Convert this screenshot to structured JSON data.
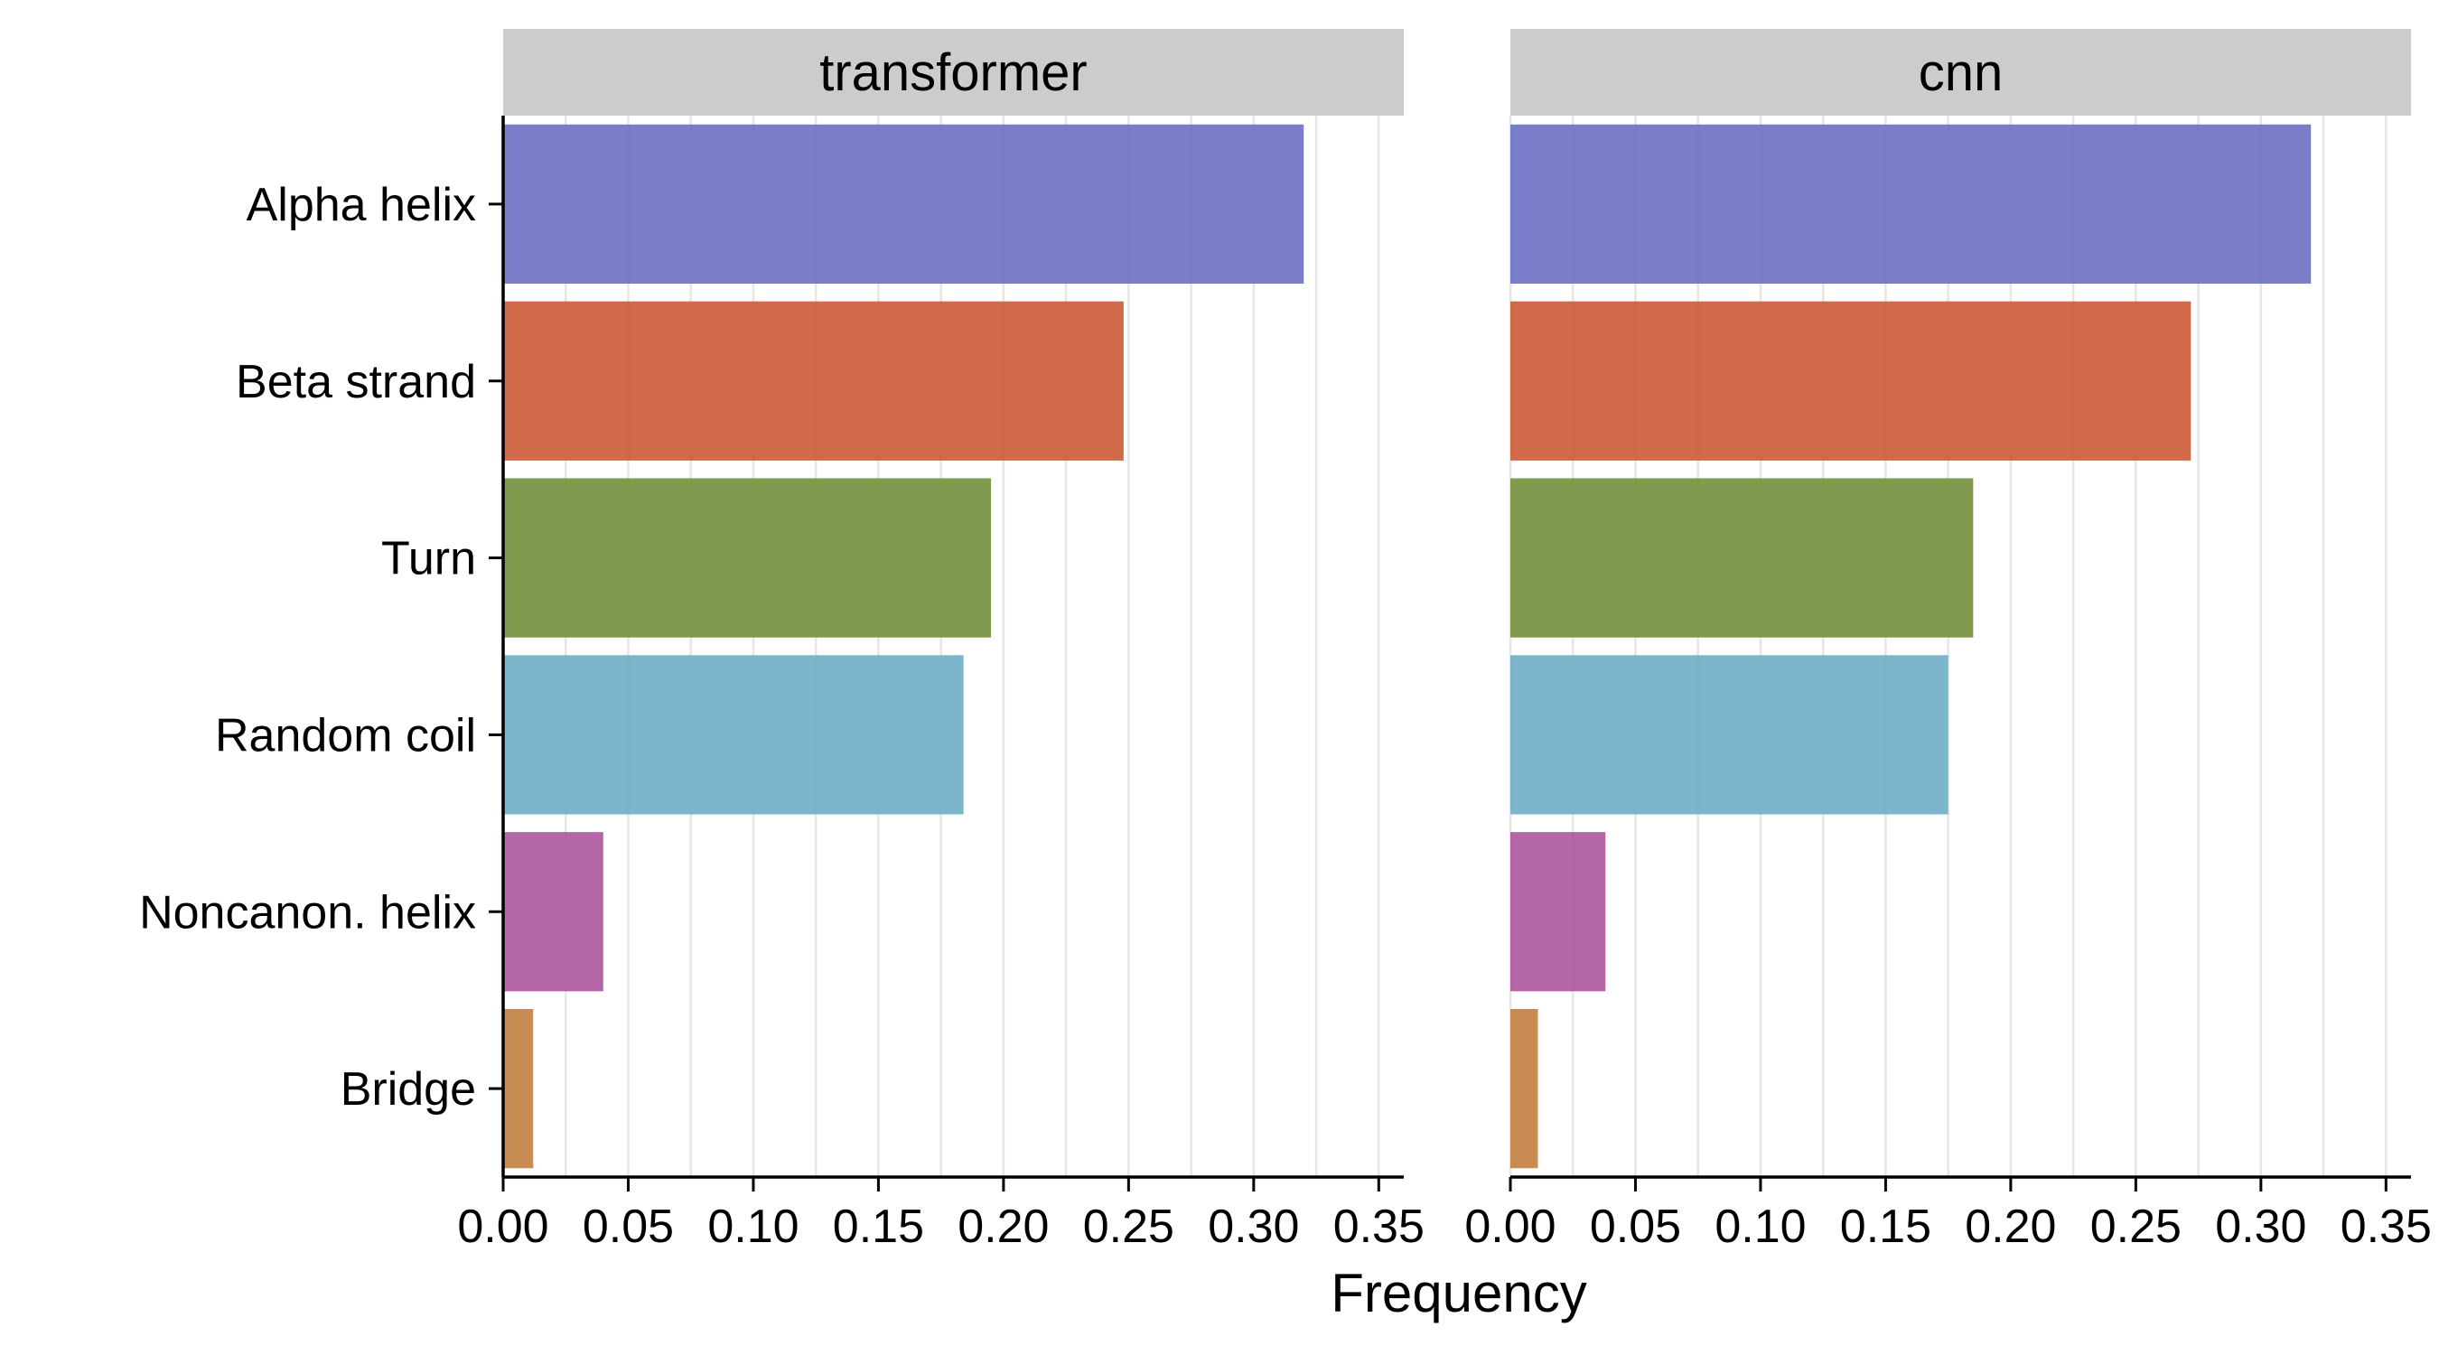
{
  "chart_data": {
    "type": "bar",
    "orientation": "horizontal",
    "xlabel": "Frequency",
    "categories": [
      "Alpha helix",
      "Beta strand",
      "Turn",
      "Random coil",
      "Noncanon. helix",
      "Bridge"
    ],
    "colors": [
      "#6c6fc4",
      "#cc5a35",
      "#728f3b",
      "#6eaec7",
      "#ad55a0",
      "#c2803f"
    ],
    "xlim": [
      0,
      0.36
    ],
    "xticks": [
      0.0,
      0.05,
      0.1,
      0.15,
      0.2,
      0.25,
      0.3,
      0.35
    ],
    "xtick_labels": [
      "0.00",
      "0.05",
      "0.10",
      "0.15",
      "0.20",
      "0.25",
      "0.30",
      "0.35"
    ],
    "grid": "vertical",
    "legend": "none",
    "panels": [
      {
        "title": "transformer",
        "values": [
          0.32,
          0.248,
          0.195,
          0.184,
          0.04,
          0.012
        ]
      },
      {
        "title": "cnn",
        "values": [
          0.32,
          0.272,
          0.185,
          0.175,
          0.038,
          0.011
        ]
      }
    ]
  }
}
